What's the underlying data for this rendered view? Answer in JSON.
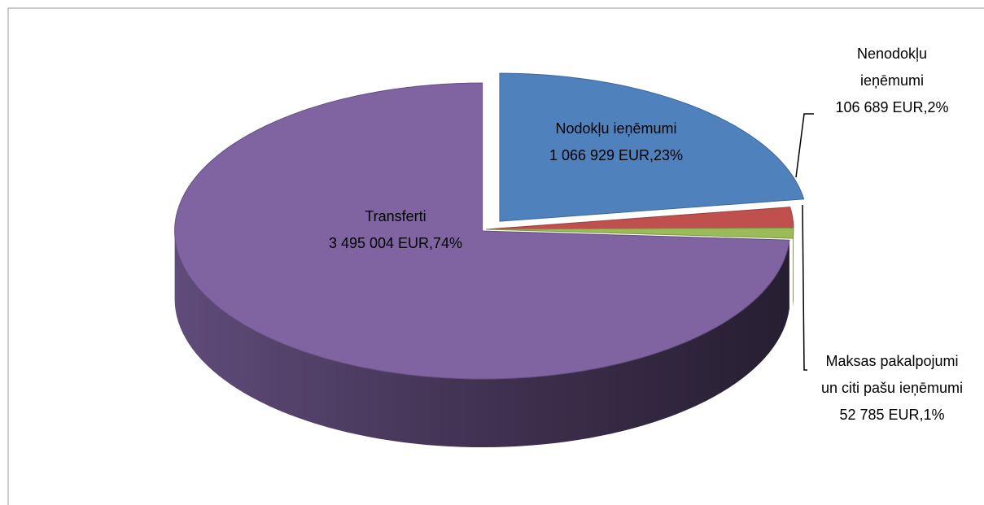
{
  "chart_data": {
    "type": "pie3d",
    "categories": [
      "Nodokļu ieņēmumi",
      "Nenodokļu ieņēmumi",
      "Maksas pakalpojumi un citi pašu ieņēmumi",
      "Transferti"
    ],
    "values": [
      1066929,
      106689,
      52785,
      3495004
    ],
    "value_labels": [
      "1 066 929 EUR,23%",
      "106 689 EUR,2%",
      "52 785 EUR,1%",
      "3 495 004 EUR,74%"
    ],
    "colors": [
      "#4f81bd",
      "#c0504d",
      "#9bbb59",
      "#8064a2"
    ]
  }
}
